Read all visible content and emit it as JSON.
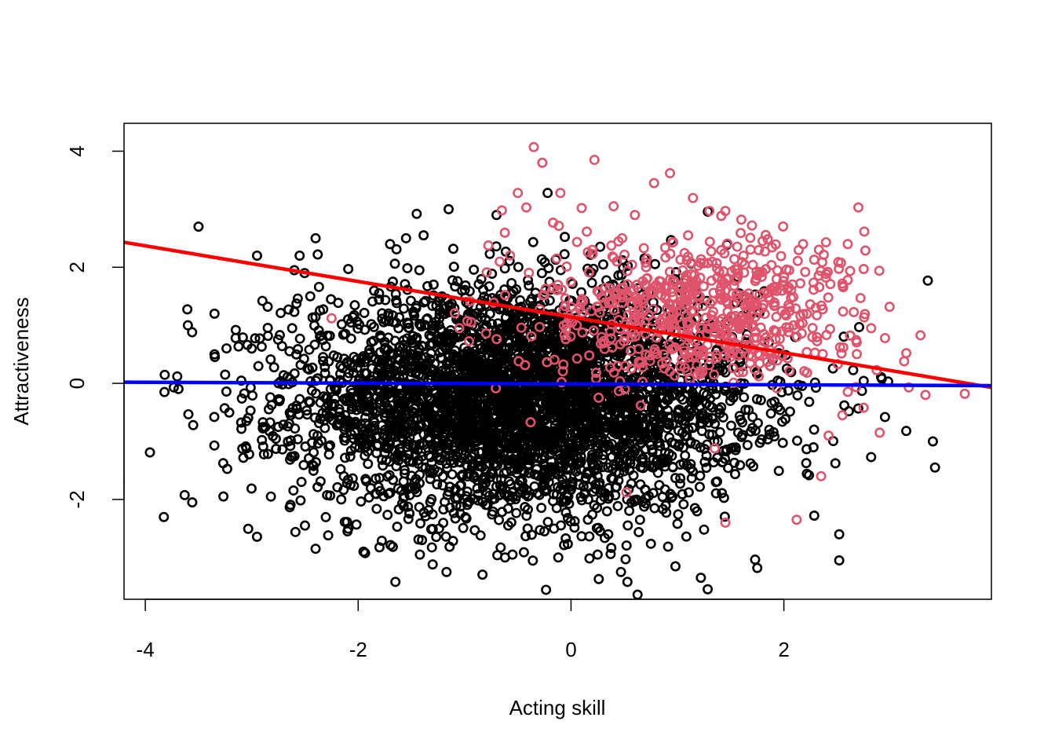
{
  "chart_data": {
    "type": "scatter",
    "title": "",
    "xlabel": "Acting skill",
    "ylabel": "Attractiveness",
    "xlim": [
      -4.2,
      3.95
    ],
    "ylim": [
      -3.72,
      4.48
    ],
    "x_ticks": [
      -4,
      -2,
      0,
      2
    ],
    "y_ticks": [
      -2,
      0,
      2,
      4
    ],
    "x_tick_labels": [
      "-4",
      "-2",
      "0",
      "2"
    ],
    "y_tick_labels": [
      "-2",
      "0",
      "2",
      "4"
    ],
    "grid": false,
    "legend": "none",
    "series": [
      {
        "color": "#000000",
        "marker": "open-circle",
        "description_n_points": 4000,
        "points": [
          [
            -3.5,
            2.7
          ],
          [
            -3.6,
            1.0
          ],
          [
            -3.35,
            1.2
          ],
          [
            -3.82,
            -0.15
          ],
          [
            -3.7,
            0.12
          ],
          [
            -3.55,
            -0.72
          ],
          [
            -3.35,
            0.5
          ],
          [
            -3.25,
            0.15
          ],
          [
            -3.05,
            -1.12
          ],
          [
            -2.95,
            2.2
          ],
          [
            -2.9,
            1.42
          ],
          [
            -2.85,
            1.32
          ],
          [
            -2.82,
            -1.95
          ],
          [
            -2.6,
            1.95
          ],
          [
            -2.55,
            2.2
          ],
          [
            -2.45,
            1.5
          ],
          [
            -2.4,
            2.5
          ],
          [
            -2.38,
            2.22
          ],
          [
            -2.4,
            -2.85
          ],
          [
            -2.5,
            -2.45
          ],
          [
            -2.1,
            -2.55
          ],
          [
            -1.95,
            -2.9
          ],
          [
            -1.65,
            -3.42
          ],
          [
            -1.42,
            -2.95
          ],
          [
            -1.3,
            -3.12
          ],
          [
            -1.17,
            -3.25
          ],
          [
            -1.7,
            2.4
          ],
          [
            -1.55,
            2.5
          ],
          [
            -1.45,
            2.92
          ],
          [
            -1.15,
            3.0
          ],
          [
            -0.7,
            2.9
          ],
          [
            -0.22,
            3.28
          ],
          [
            -0.55,
            -2.95
          ],
          [
            -0.62,
            -3.0
          ],
          [
            -0.12,
            -3.0
          ],
          [
            0.25,
            -2.95
          ],
          [
            0.53,
            -3.42
          ],
          [
            1.22,
            -3.35
          ],
          [
            1.75,
            -3.18
          ],
          [
            2.52,
            -3.05
          ],
          [
            2.52,
            -2.6
          ],
          [
            3.4,
            -1.0
          ],
          [
            3.42,
            -1.45
          ],
          [
            3.15,
            -0.82
          ],
          [
            2.95,
            -0.58
          ],
          [
            2.82,
            -1.27
          ],
          [
            2.92,
            0.08
          ],
          [
            -3.05,
            -0.65
          ],
          [
            -2.75,
            -0.75
          ],
          [
            -2.62,
            0.95
          ],
          [
            -3.15,
            0.92
          ],
          [
            -3.0,
            0.6
          ],
          [
            1.25,
            -2.52
          ],
          [
            1.0,
            -2.42
          ],
          [
            0.35,
            -2.6
          ],
          [
            -0.25,
            -2.55
          ],
          [
            -0.85,
            -2.62
          ],
          [
            -1.4,
            -2.7
          ]
        ],
        "cloud": {
          "mean": [
            -0.45,
            -0.3
          ],
          "sd": [
            1.05,
            0.95
          ],
          "n": 4000
        }
      },
      {
        "color": "#df536b",
        "marker": "open-circle",
        "points": [
          [
            -0.35,
            4.07
          ],
          [
            -0.27,
            3.8
          ],
          [
            0.22,
            3.85
          ],
          [
            0.93,
            3.62
          ],
          [
            0.78,
            3.45
          ],
          [
            -0.5,
            3.28
          ],
          [
            -0.65,
            2.98
          ],
          [
            -0.42,
            3.03
          ],
          [
            -0.1,
            3.28
          ],
          [
            0.1,
            3.02
          ],
          [
            0.4,
            3.05
          ],
          [
            0.6,
            2.9
          ],
          [
            1.3,
            2.97
          ],
          [
            1.45,
            2.97
          ],
          [
            1.6,
            2.82
          ],
          [
            1.7,
            2.72
          ],
          [
            2.7,
            3.03
          ],
          [
            2.6,
            2.4
          ],
          [
            2.18,
            2.4
          ],
          [
            2.75,
            1.97
          ],
          [
            2.6,
            1.78
          ],
          [
            2.55,
            1.72
          ],
          [
            2.72,
            1.47
          ],
          [
            2.82,
            0.95
          ],
          [
            2.95,
            0.78
          ],
          [
            3.15,
            0.52
          ],
          [
            3.33,
            -0.2
          ],
          [
            3.7,
            -0.18
          ],
          [
            3.13,
            0.38
          ],
          [
            2.9,
            -0.85
          ],
          [
            2.75,
            -0.42
          ],
          [
            2.55,
            -0.55
          ],
          [
            2.42,
            -0.9
          ],
          [
            2.35,
            -1.6
          ],
          [
            2.12,
            -2.35
          ],
          [
            1.45,
            -2.4
          ],
          [
            1.35,
            -1.12
          ],
          [
            0.52,
            -1.88
          ],
          [
            -0.38,
            -0.67
          ],
          [
            -1.05,
            0.95
          ],
          [
            -2.25,
            1.12
          ],
          [
            0.2,
            2.3
          ],
          [
            0.48,
            2.5
          ],
          [
            1.1,
            2.55
          ],
          [
            1.8,
            2.45
          ],
          [
            2.05,
            1.95
          ],
          [
            1.9,
            1.65
          ],
          [
            2.3,
            1.3
          ]
        ],
        "cloud": {
          "mean": [
            1.25,
            1.2
          ],
          "sd": [
            0.75,
            0.65
          ],
          "n": 650
        }
      }
    ],
    "lines": [
      {
        "name": "",
        "color": "#ff0000",
        "x": [
          -4.2,
          3.95
        ],
        "y": [
          2.43,
          -0.07
        ]
      },
      {
        "name": "",
        "color": "#0000ff",
        "x": [
          -4.2,
          3.95
        ],
        "y": [
          0.02,
          -0.04
        ]
      }
    ]
  }
}
